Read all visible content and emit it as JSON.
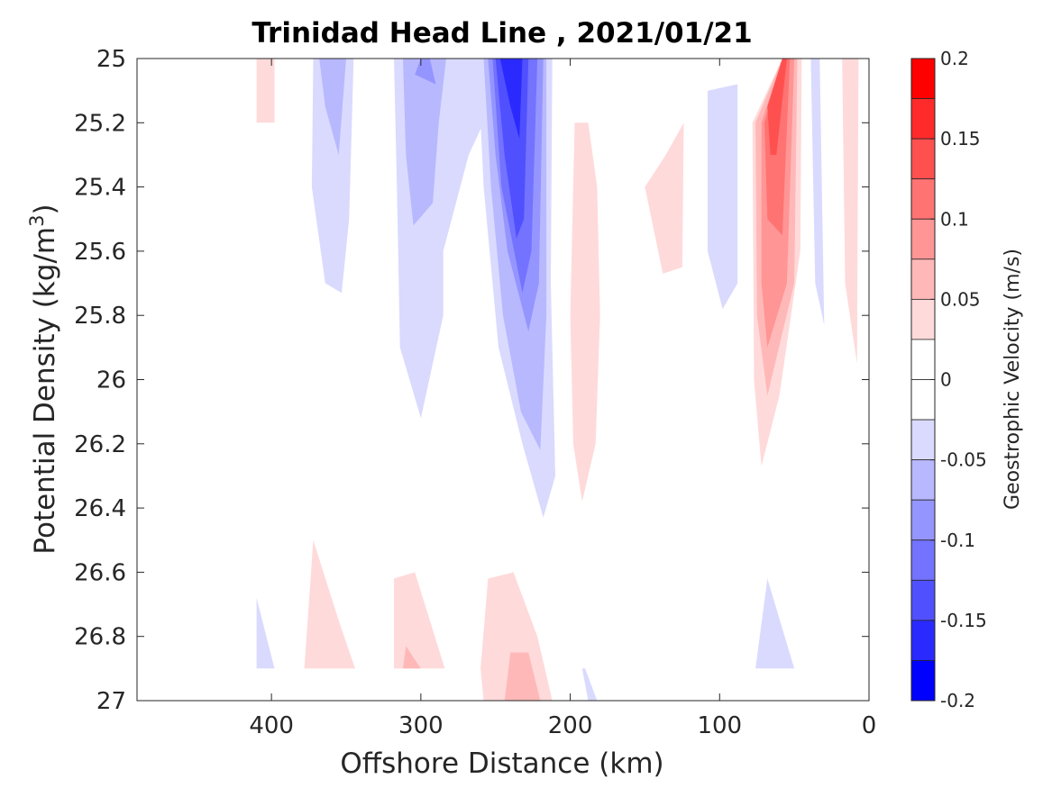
{
  "chart_data": {
    "type": "contour",
    "title": "Trinidad Head Line , 2021/01/21",
    "xlabel": "Offshore Distance (km)",
    "ylabel_main": "Potential Density (kg/m",
    "ylabel_sup": "3",
    "ylabel_close": ")",
    "xlim": [
      490,
      0
    ],
    "ylim": [
      25,
      27
    ],
    "xticks": [
      400,
      300,
      200,
      100,
      0
    ],
    "xtick_labels": [
      "400",
      "300",
      "200",
      "100",
      "0"
    ],
    "yticks": [
      25,
      25.2,
      25.4,
      25.6,
      25.8,
      26,
      26.2,
      26.4,
      26.6,
      26.8,
      27
    ],
    "ytick_labels": [
      "25",
      "25.2",
      "25.4",
      "25.6",
      "25.8",
      "26",
      "26.2",
      "26.4",
      "26.6",
      "26.8",
      "27"
    ],
    "colorbar": {
      "label": "Geostrophic Velocity (m/s)",
      "range": [
        -0.2,
        0.2
      ],
      "ticks": [
        0.2,
        0.15,
        0.1,
        0.05,
        0,
        -0.05,
        -0.1,
        -0.15,
        -0.2
      ],
      "tick_labels": [
        "0.2",
        "0.15",
        "0.1",
        "0.05",
        "0",
        "-0.05",
        "-0.1",
        "-0.15",
        "-0.2"
      ],
      "levels": [
        {
          "min": 0.175,
          "max": 0.2,
          "color": "#ff0000"
        },
        {
          "min": 0.15,
          "max": 0.175,
          "color": "#ff2a2a"
        },
        {
          "min": 0.125,
          "max": 0.15,
          "color": "#ff5050"
        },
        {
          "min": 0.1,
          "max": 0.125,
          "color": "#ff7373"
        },
        {
          "min": 0.075,
          "max": 0.1,
          "color": "#ff9595"
        },
        {
          "min": 0.05,
          "max": 0.075,
          "color": "#ffb8b8"
        },
        {
          "min": 0.025,
          "max": 0.05,
          "color": "#ffdada"
        },
        {
          "min": 0.0,
          "max": 0.025,
          "color": "#ffffff"
        },
        {
          "min": -0.025,
          "max": 0.0,
          "color": "#ffffff"
        },
        {
          "min": -0.05,
          "max": -0.025,
          "color": "#dadaff"
        },
        {
          "min": -0.075,
          "max": -0.05,
          "color": "#b8b8ff"
        },
        {
          "min": -0.1,
          "max": -0.075,
          "color": "#9595ff"
        },
        {
          "min": -0.125,
          "max": -0.1,
          "color": "#7373ff"
        },
        {
          "min": -0.15,
          "max": -0.125,
          "color": "#5050ff"
        },
        {
          "min": -0.175,
          "max": -0.15,
          "color": "#2a2aff"
        },
        {
          "min": -0.2,
          "max": -0.175,
          "color": "#0000ff"
        }
      ]
    },
    "contour_regions": [
      {
        "level": 0.0375,
        "points": [
          [
            410,
            25
          ],
          [
            398,
            25
          ],
          [
            398,
            25.2
          ],
          [
            410,
            25.2
          ]
        ]
      },
      {
        "level": -0.0375,
        "points": [
          [
            372,
            25
          ],
          [
            345,
            25
          ],
          [
            348,
            25.5
          ],
          [
            353,
            25.73
          ],
          [
            364,
            25.7
          ],
          [
            373,
            25.4
          ]
        ]
      },
      {
        "level": -0.0625,
        "points": [
          [
            368,
            25
          ],
          [
            350,
            25
          ],
          [
            355,
            25.3
          ],
          [
            364,
            25.15
          ]
        ]
      },
      {
        "level": -0.0375,
        "points": [
          [
            318,
            25
          ],
          [
            238,
            25
          ],
          [
            268,
            25.3
          ],
          [
            285,
            25.6
          ],
          [
            285,
            25.8
          ],
          [
            300,
            26.12
          ],
          [
            314,
            25.9
          ],
          [
            316,
            25.4
          ]
        ]
      },
      {
        "level": -0.0625,
        "points": [
          [
            312,
            25
          ],
          [
            283,
            25
          ],
          [
            288,
            25.2
          ],
          [
            292,
            25.45
          ],
          [
            305,
            25.52
          ],
          [
            310,
            25.3
          ]
        ]
      },
      {
        "level": -0.0875,
        "points": [
          [
            300,
            25
          ],
          [
            294,
            25
          ],
          [
            290,
            25.08
          ],
          [
            304,
            25.05
          ]
        ]
      },
      {
        "level": -0.0375,
        "points": [
          [
            262,
            25
          ],
          [
            212,
            25
          ],
          [
            213,
            25.7
          ],
          [
            210,
            26.3
          ],
          [
            218,
            26.43
          ],
          [
            232,
            26.2
          ],
          [
            248,
            25.9
          ],
          [
            258,
            25.4
          ]
        ]
      },
      {
        "level": -0.0625,
        "points": [
          [
            258,
            25
          ],
          [
            216,
            25
          ],
          [
            216,
            25.8
          ],
          [
            220,
            26.22
          ],
          [
            233,
            26.1
          ],
          [
            245,
            25.8
          ],
          [
            253,
            25.4
          ]
        ]
      },
      {
        "level": -0.0875,
        "points": [
          [
            255,
            25
          ],
          [
            218,
            25
          ],
          [
            221,
            25.7
          ],
          [
            228,
            25.85
          ],
          [
            242,
            25.6
          ],
          [
            250,
            25.3
          ]
        ]
      },
      {
        "level": -0.1125,
        "points": [
          [
            252,
            25
          ],
          [
            222,
            25
          ],
          [
            226,
            25.6
          ],
          [
            232,
            25.73
          ],
          [
            246,
            25.4
          ]
        ]
      },
      {
        "level": -0.1375,
        "points": [
          [
            250,
            25
          ],
          [
            228,
            25
          ],
          [
            231,
            25.5
          ],
          [
            236,
            25.56
          ],
          [
            244,
            25.3
          ]
        ]
      },
      {
        "level": -0.1625,
        "points": [
          [
            247,
            25
          ],
          [
            232,
            25
          ],
          [
            234,
            25.25
          ],
          [
            240,
            25.15
          ]
        ]
      },
      {
        "level": 0.0375,
        "points": [
          [
            197,
            25.2
          ],
          [
            188,
            25.2
          ],
          [
            182,
            25.4
          ],
          [
            180,
            25.8
          ],
          [
            183,
            26.2
          ],
          [
            192,
            26.38
          ],
          [
            198,
            26.2
          ],
          [
            200,
            25.8
          ]
        ]
      },
      {
        "level": 0.0375,
        "points": [
          [
            150,
            25.4
          ],
          [
            138,
            25.67
          ],
          [
            125,
            25.65
          ],
          [
            124,
            25.2
          ],
          [
            136,
            25.3
          ]
        ]
      },
      {
        "level": -0.0375,
        "points": [
          [
            108,
            25.1
          ],
          [
            88,
            25.08
          ],
          [
            88,
            25.7
          ],
          [
            98,
            25.78
          ],
          [
            108,
            25.6
          ]
        ]
      },
      {
        "level": 0.0375,
        "points": [
          [
            78,
            25.2
          ],
          [
            58,
            25
          ],
          [
            45,
            25
          ],
          [
            46,
            25.6
          ],
          [
            60,
            26.05
          ],
          [
            72,
            26.27
          ],
          [
            77,
            26.0
          ]
        ]
      },
      {
        "level": 0.0625,
        "points": [
          [
            76,
            25.2
          ],
          [
            58,
            25
          ],
          [
            48,
            25
          ],
          [
            50,
            25.7
          ],
          [
            68,
            26.05
          ],
          [
            75,
            25.8
          ]
        ]
      },
      {
        "level": 0.0875,
        "points": [
          [
            72,
            25.2
          ],
          [
            58,
            25
          ],
          [
            50,
            25
          ],
          [
            55,
            25.7
          ],
          [
            68,
            25.9
          ],
          [
            72,
            25.7
          ]
        ]
      },
      {
        "level": 0.1125,
        "points": [
          [
            70,
            25.2
          ],
          [
            58,
            25
          ],
          [
            53,
            25
          ],
          [
            58,
            25.55
          ],
          [
            68,
            25.5
          ]
        ]
      },
      {
        "level": 0.1375,
        "points": [
          [
            68,
            25.15
          ],
          [
            58,
            25
          ],
          [
            55,
            25
          ],
          [
            62,
            25.3
          ],
          [
            66,
            25.3
          ]
        ]
      },
      {
        "level": -0.0375,
        "points": [
          [
            39,
            25
          ],
          [
            33,
            25
          ],
          [
            30,
            25.83
          ],
          [
            36,
            25.7
          ]
        ]
      },
      {
        "level": 0.0375,
        "points": [
          [
            18,
            25
          ],
          [
            7,
            25
          ],
          [
            8,
            25.95
          ],
          [
            16,
            25.7
          ]
        ]
      },
      {
        "level": -0.0375,
        "points": [
          [
            410,
            26.68
          ],
          [
            398,
            26.9
          ],
          [
            410,
            26.9
          ]
        ]
      },
      {
        "level": 0.0375,
        "points": [
          [
            372,
            26.5
          ],
          [
            378,
            26.9
          ],
          [
            344,
            26.9
          ],
          [
            355,
            26.75
          ]
        ]
      },
      {
        "level": 0.0375,
        "points": [
          [
            318,
            26.62
          ],
          [
            304,
            26.6
          ],
          [
            284,
            26.9
          ],
          [
            318,
            26.9
          ]
        ]
      },
      {
        "level": 0.0625,
        "points": [
          [
            310,
            26.83
          ],
          [
            300,
            26.9
          ],
          [
            312,
            26.9
          ]
        ]
      },
      {
        "level": 0.0375,
        "points": [
          [
            260,
            26.9
          ],
          [
            255,
            26.62
          ],
          [
            238,
            26.6
          ],
          [
            222,
            26.8
          ],
          [
            212,
            27
          ],
          [
            258,
            27
          ]
        ]
      },
      {
        "level": 0.0625,
        "points": [
          [
            240,
            26.85
          ],
          [
            228,
            26.85
          ],
          [
            220,
            27
          ],
          [
            244,
            27
          ]
        ]
      },
      {
        "level": -0.0375,
        "points": [
          [
            192,
            26.9
          ],
          [
            188,
            27
          ],
          [
            182,
            27
          ],
          [
            190,
            26.9
          ]
        ]
      },
      {
        "level": -0.0375,
        "points": [
          [
            76,
            26.9
          ],
          [
            68,
            26.62
          ],
          [
            50,
            26.9
          ]
        ]
      }
    ]
  }
}
